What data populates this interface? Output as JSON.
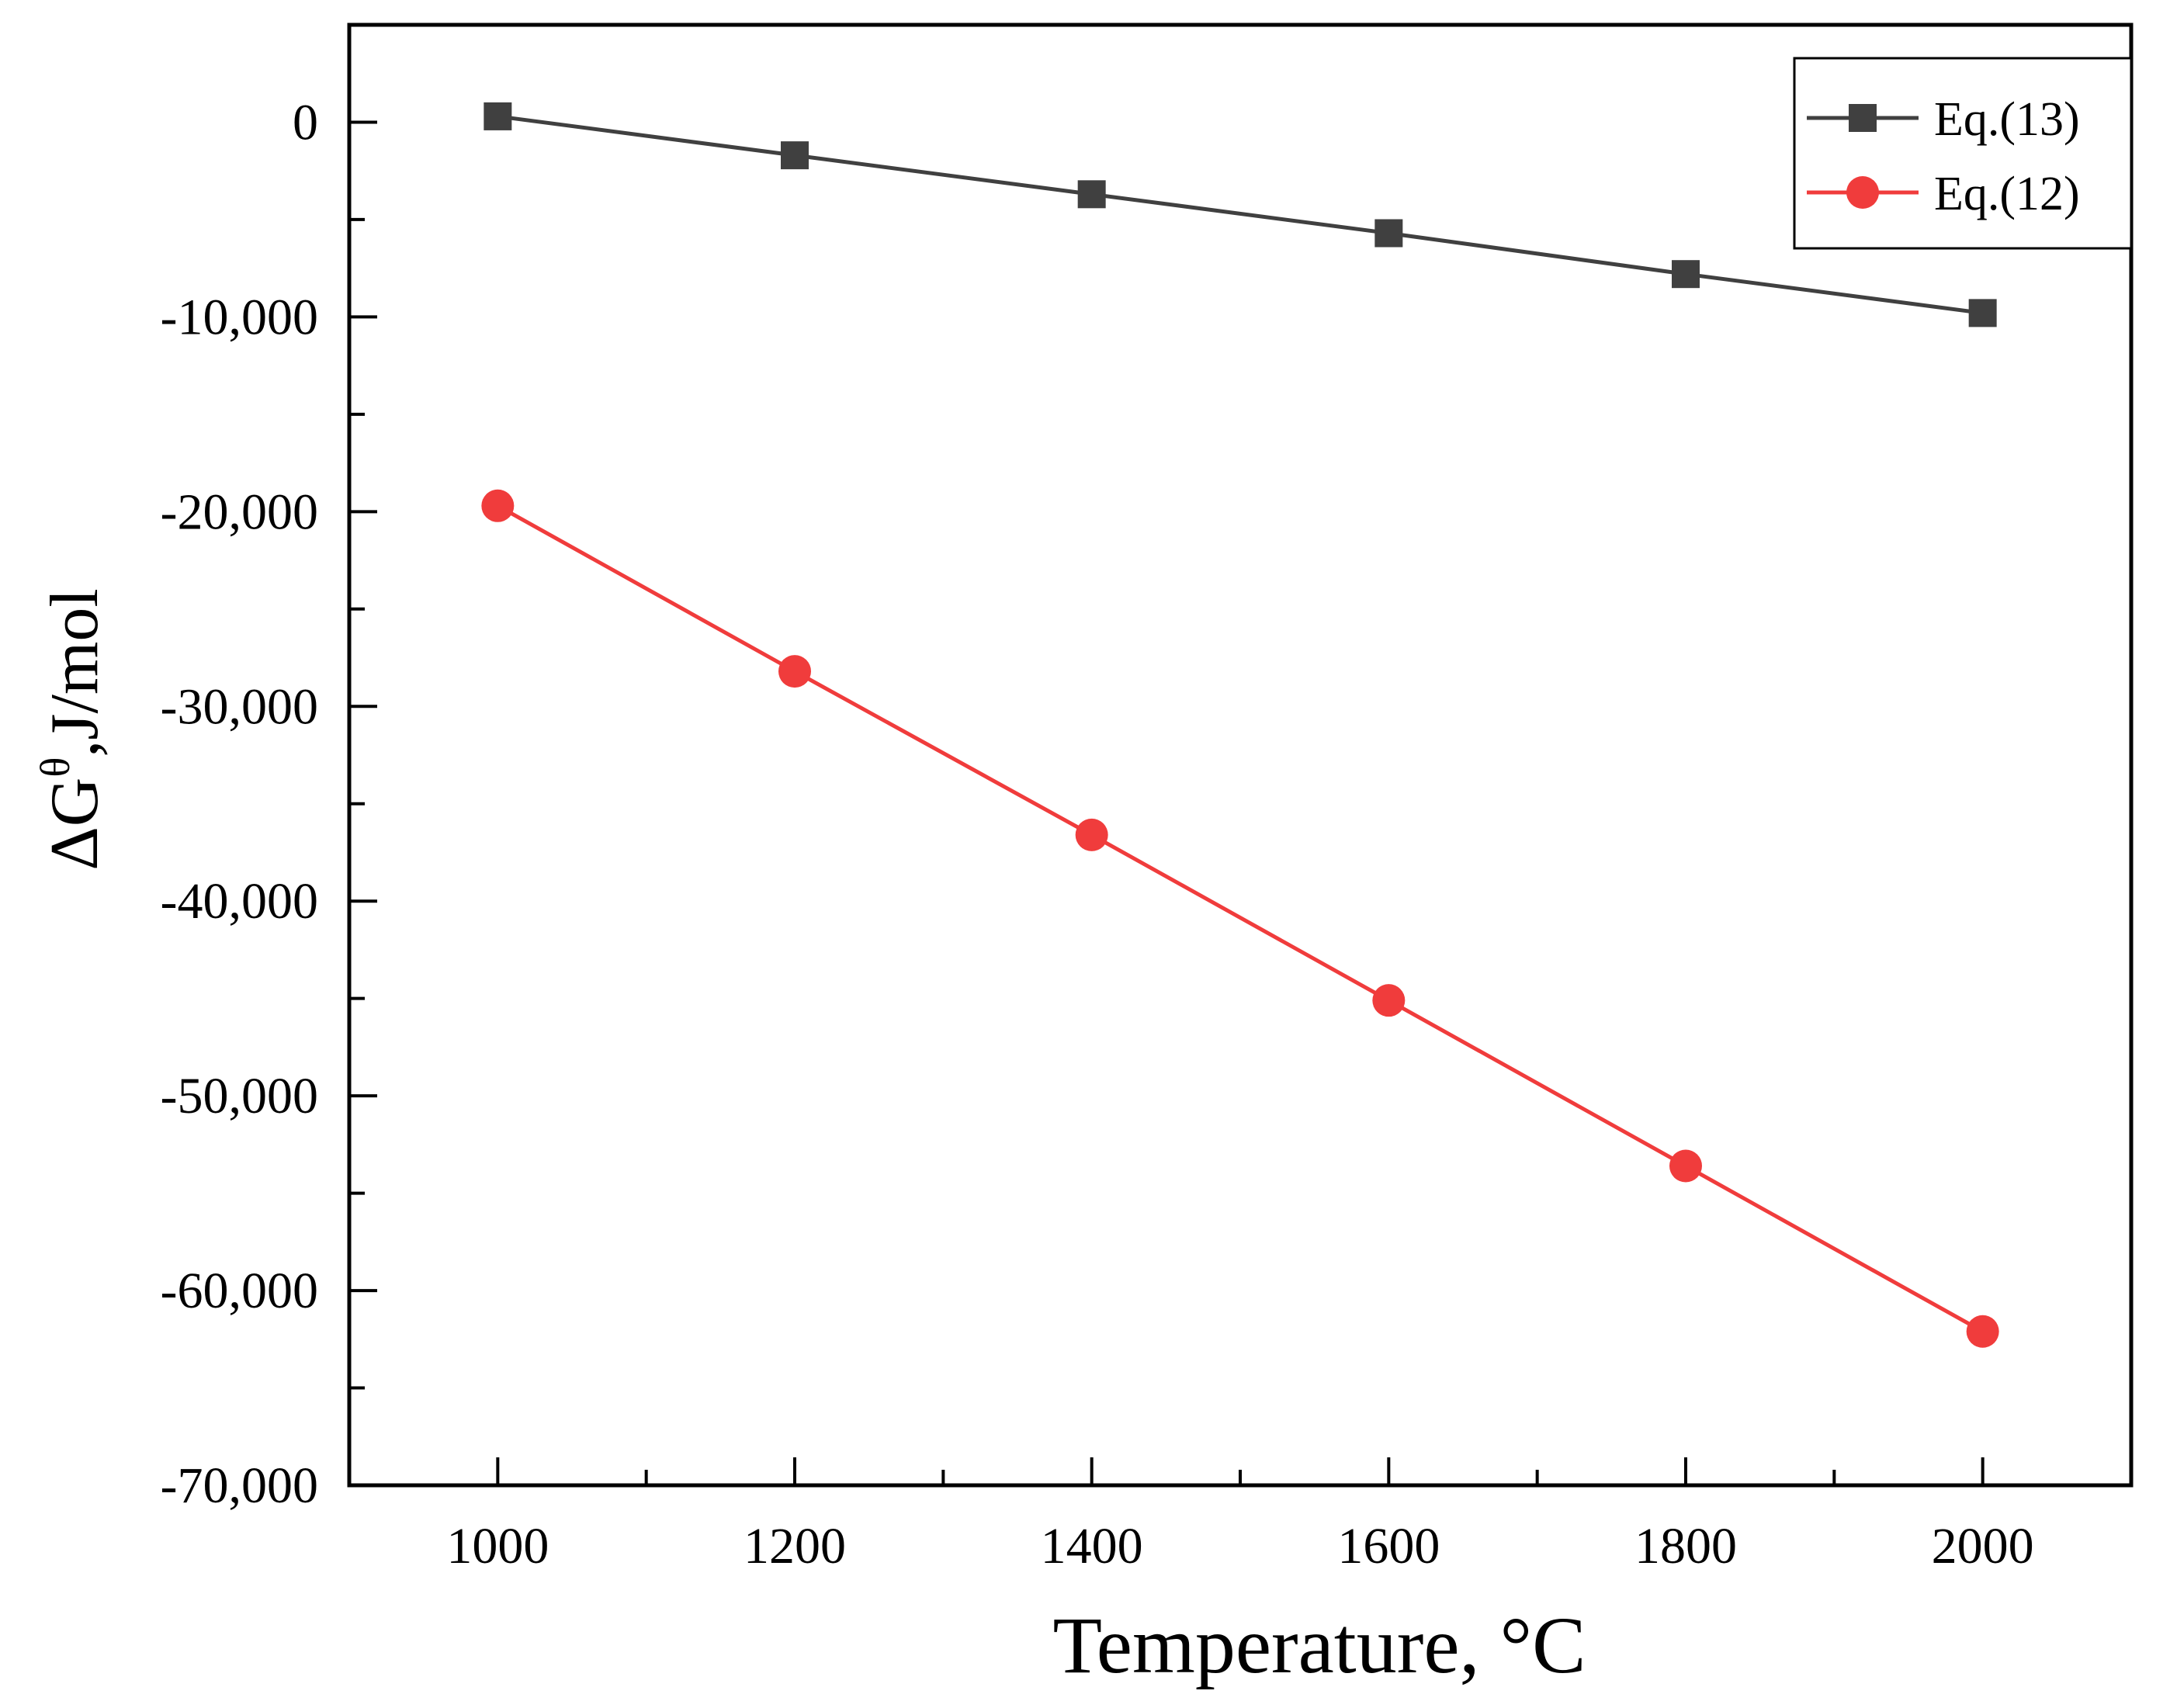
{
  "chart_data": {
    "type": "line",
    "title": "",
    "xlabel": "Temperature, °C",
    "ylabel": {
      "prefix": "ΔG",
      "superscript": "θ",
      "suffix": ",J/mol"
    },
    "xlim": [
      900,
      2100
    ],
    "ylim": [
      -70000,
      5000
    ],
    "x_ticks": [
      1000,
      1200,
      1400,
      1600,
      1800,
      2000
    ],
    "x_tick_labels": [
      "1000",
      "1200",
      "1400",
      "1600",
      "1800",
      "2000"
    ],
    "y_ticks": [
      0,
      -10000,
      -20000,
      -30000,
      -40000,
      -50000,
      -60000,
      -70000
    ],
    "y_tick_labels": [
      "0",
      "-10,000",
      "-20,000",
      "-30,000",
      "-40,000",
      "-50,000",
      "-60,000",
      "-70,000"
    ],
    "legend_position": "top-right",
    "series": [
      {
        "name": "Eq.(13)",
        "color": "#404040",
        "marker": "square",
        "x": [
          1000,
          1200,
          1400,
          1600,
          1800,
          2000
        ],
        "values": [
          300,
          -1700,
          -3700,
          -5700,
          -7800,
          -9800
        ]
      },
      {
        "name": "Eq.(12)",
        "color": "#f03c3c",
        "marker": "circle",
        "x": [
          1000,
          1200,
          1400,
          1600,
          1800,
          2000
        ],
        "values": [
          -19700,
          -28200,
          -36600,
          -45100,
          -53600,
          -62100
        ]
      }
    ]
  }
}
